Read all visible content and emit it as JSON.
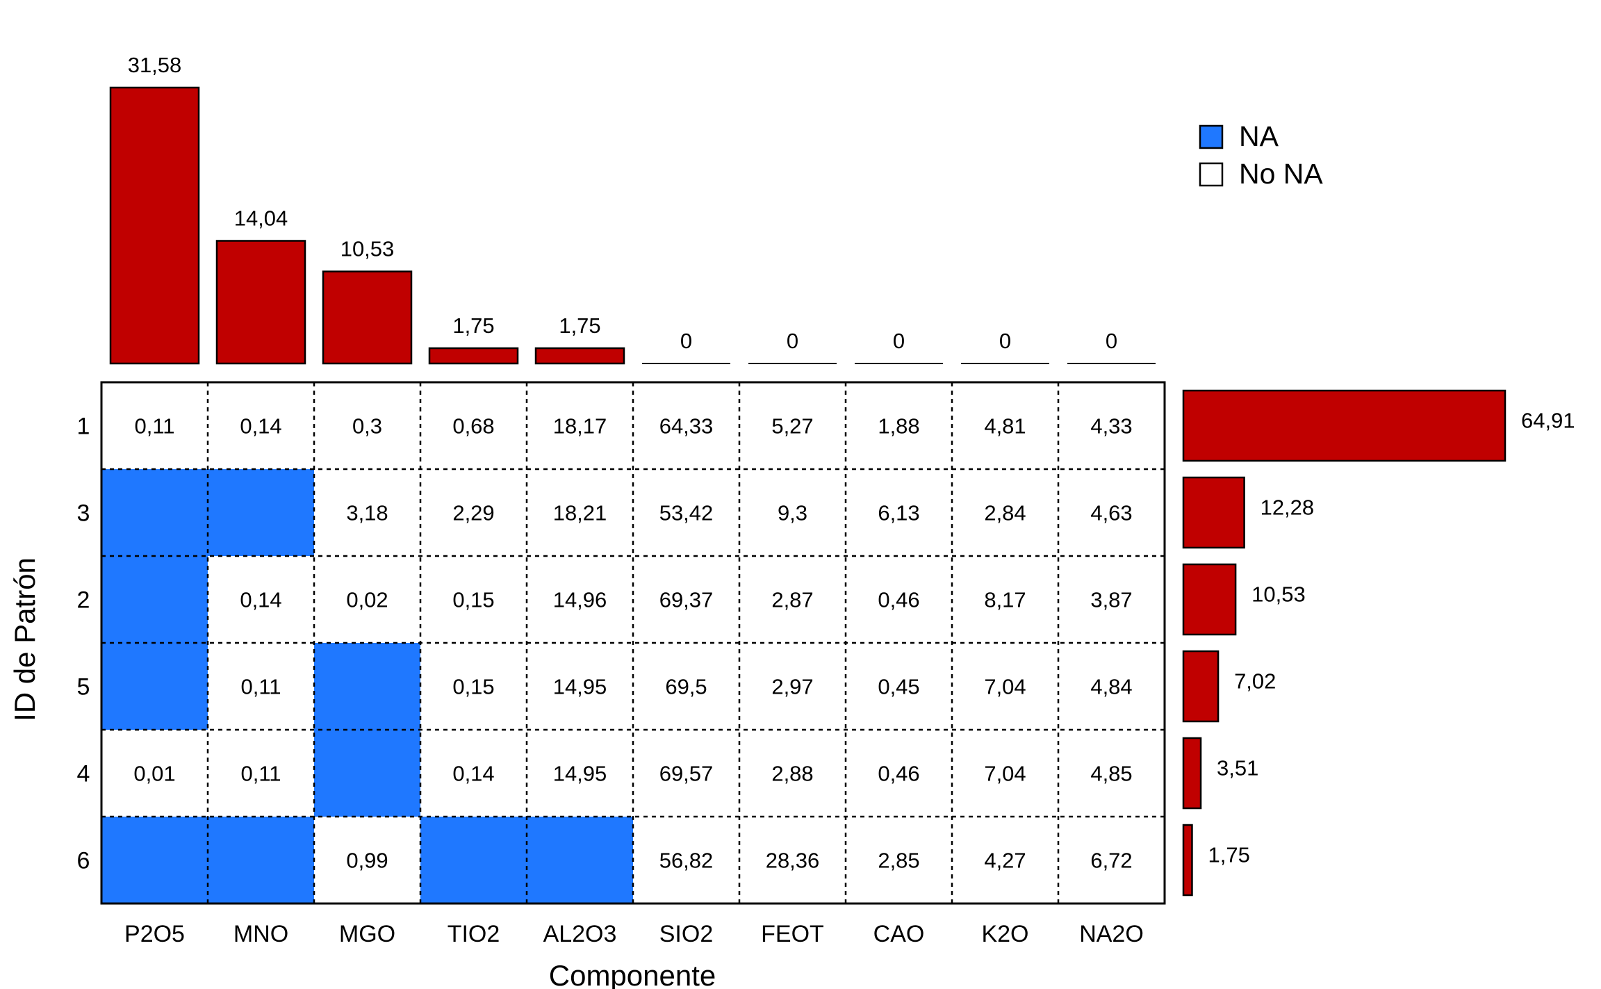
{
  "chart_data": {
    "type": "heatmap",
    "xlabel": "Componente",
    "ylabel": "ID de Patrón",
    "components": [
      "P2O5",
      "MNO",
      "MGO",
      "TIO2",
      "AL2O3",
      "SIO2",
      "FEOT",
      "CAO",
      "K2O",
      "NA2O"
    ],
    "patterns": [
      {
        "id": "1",
        "values": [
          "0,11",
          "0,14",
          "0,3",
          "0,68",
          "18,17",
          "64,33",
          "5,27",
          "1,88",
          "4,81",
          "4,33"
        ]
      },
      {
        "id": "3",
        "values": [
          null,
          null,
          "3,18",
          "2,29",
          "18,21",
          "53,42",
          "9,3",
          "6,13",
          "2,84",
          "4,63"
        ]
      },
      {
        "id": "2",
        "values": [
          null,
          "0,14",
          "0,02",
          "0,15",
          "14,96",
          "69,37",
          "2,87",
          "0,46",
          "8,17",
          "3,87"
        ]
      },
      {
        "id": "5",
        "values": [
          null,
          "0,11",
          null,
          "0,15",
          "14,95",
          "69,5",
          "2,97",
          "0,45",
          "7,04",
          "4,84"
        ]
      },
      {
        "id": "4",
        "values": [
          "0,01",
          "0,11",
          null,
          "0,14",
          "14,95",
          "69,57",
          "2,88",
          "0,46",
          "7,04",
          "4,85"
        ]
      },
      {
        "id": "6",
        "values": [
          null,
          null,
          "0,99",
          null,
          null,
          "56,82",
          "28,36",
          "2,85",
          "4,27",
          "6,72"
        ]
      }
    ],
    "top_bars": {
      "values": [
        31.58,
        14.04,
        10.53,
        1.75,
        1.75,
        0,
        0,
        0,
        0,
        0
      ],
      "labels": [
        "31,58",
        "14,04",
        "10,53",
        "1,75",
        "1,75",
        "0",
        "0",
        "0",
        "0",
        "0"
      ]
    },
    "side_bars": {
      "values": [
        64.91,
        12.28,
        10.53,
        7.02,
        3.51,
        1.75
      ],
      "labels": [
        "64,91",
        "12,28",
        "10,53",
        "7,02",
        "3,51",
        "1,75"
      ]
    },
    "legend": [
      {
        "label": "NA",
        "color": "#1f78ff"
      },
      {
        "label": "No NA",
        "color": "#ffffff"
      }
    ],
    "legend_position": "top-right",
    "colors": {
      "bar": "#c00000",
      "na": "#1f78ff",
      "present": "#ffffff"
    }
  }
}
